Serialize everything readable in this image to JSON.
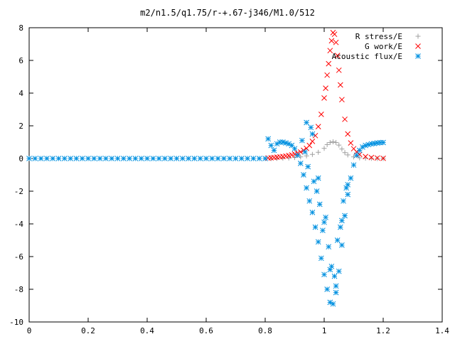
{
  "chart_data": {
    "type": "scatter",
    "title": "m2/n1.5/q1.75/r-+.67-j346/M1.0/512",
    "xlabel": "",
    "ylabel": "",
    "xlim": [
      0,
      1.4
    ],
    "ylim": [
      -10,
      8
    ],
    "x_ticks": [
      0,
      0.2,
      0.4,
      0.6,
      0.8,
      1.0,
      1.2,
      1.4
    ],
    "x_tick_labels": [
      "0",
      "0.2",
      "0.4",
      "0.6",
      "0.8",
      "1",
      "1.2",
      "1.4"
    ],
    "y_ticks": [
      -10,
      -8,
      -6,
      -4,
      -2,
      0,
      2,
      4,
      6,
      8
    ],
    "y_tick_labels": [
      "-10",
      "-8",
      "-6",
      "-4",
      "-2",
      "0",
      "2",
      "4",
      "6",
      "8"
    ],
    "grid": false,
    "legend_position": "top-right",
    "series": [
      {
        "name": "R stress/E",
        "marker": "plus",
        "color": "#a0a0a0",
        "points": [
          [
            0.82,
            0.0
          ],
          [
            0.84,
            0.01
          ],
          [
            0.86,
            0.02
          ],
          [
            0.88,
            0.03
          ],
          [
            0.9,
            0.06
          ],
          [
            0.92,
            0.1
          ],
          [
            0.94,
            0.16
          ],
          [
            0.96,
            0.25
          ],
          [
            0.98,
            0.38
          ],
          [
            1.0,
            0.62
          ],
          [
            1.01,
            0.85
          ],
          [
            1.02,
            0.98
          ],
          [
            1.03,
            1.02
          ],
          [
            1.04,
            0.98
          ],
          [
            1.05,
            0.82
          ],
          [
            1.06,
            0.58
          ],
          [
            1.07,
            0.36
          ],
          [
            1.08,
            0.22
          ],
          [
            1.1,
            0.1
          ],
          [
            1.12,
            0.04
          ],
          [
            1.14,
            0.02
          ],
          [
            1.16,
            0.01
          ],
          [
            1.18,
            0.0
          ],
          [
            1.2,
            0.0
          ]
        ]
      },
      {
        "name": "G work/E",
        "marker": "cross",
        "color": "#ff0000",
        "points": [
          [
            0.81,
            0.03
          ],
          [
            0.82,
            0.04
          ],
          [
            0.83,
            0.06
          ],
          [
            0.84,
            0.08
          ],
          [
            0.85,
            0.1
          ],
          [
            0.86,
            0.12
          ],
          [
            0.87,
            0.15
          ],
          [
            0.88,
            0.18
          ],
          [
            0.89,
            0.22
          ],
          [
            0.9,
            0.27
          ],
          [
            0.91,
            0.33
          ],
          [
            0.92,
            0.4
          ],
          [
            0.93,
            0.5
          ],
          [
            0.94,
            0.62
          ],
          [
            0.95,
            0.8
          ],
          [
            0.96,
            1.05
          ],
          [
            0.97,
            1.4
          ],
          [
            0.98,
            1.95
          ],
          [
            0.99,
            2.7
          ],
          [
            1.0,
            3.7
          ],
          [
            1.005,
            4.3
          ],
          [
            1.01,
            5.1
          ],
          [
            1.015,
            5.8
          ],
          [
            1.02,
            6.6
          ],
          [
            1.025,
            7.2
          ],
          [
            1.03,
            7.7
          ],
          [
            1.035,
            7.6
          ],
          [
            1.04,
            7.1
          ],
          [
            1.045,
            6.3
          ],
          [
            1.05,
            5.4
          ],
          [
            1.055,
            4.5
          ],
          [
            1.06,
            3.6
          ],
          [
            1.07,
            2.4
          ],
          [
            1.08,
            1.5
          ],
          [
            1.09,
            0.95
          ],
          [
            1.1,
            0.6
          ],
          [
            1.11,
            0.4
          ],
          [
            1.12,
            0.25
          ],
          [
            1.14,
            0.12
          ],
          [
            1.16,
            0.06
          ],
          [
            1.18,
            0.03
          ],
          [
            1.2,
            0.01
          ]
        ]
      },
      {
        "name": "Acoustic flux/E",
        "marker": "star",
        "color": "#0090e0",
        "points": [
          [
            0.0,
            0.0
          ],
          [
            0.02,
            0.0
          ],
          [
            0.04,
            0.0
          ],
          [
            0.06,
            0.0
          ],
          [
            0.08,
            0.0
          ],
          [
            0.1,
            0.0
          ],
          [
            0.12,
            0.0
          ],
          [
            0.14,
            0.0
          ],
          [
            0.16,
            0.0
          ],
          [
            0.18,
            0.0
          ],
          [
            0.2,
            0.0
          ],
          [
            0.22,
            0.0
          ],
          [
            0.24,
            0.0
          ],
          [
            0.26,
            0.0
          ],
          [
            0.28,
            0.0
          ],
          [
            0.3,
            0.0
          ],
          [
            0.32,
            0.0
          ],
          [
            0.34,
            0.0
          ],
          [
            0.36,
            0.0
          ],
          [
            0.38,
            0.0
          ],
          [
            0.4,
            0.0
          ],
          [
            0.42,
            0.0
          ],
          [
            0.44,
            0.0
          ],
          [
            0.46,
            0.0
          ],
          [
            0.48,
            0.0
          ],
          [
            0.5,
            0.0
          ],
          [
            0.52,
            0.0
          ],
          [
            0.54,
            0.0
          ],
          [
            0.56,
            0.0
          ],
          [
            0.58,
            0.0
          ],
          [
            0.6,
            0.0
          ],
          [
            0.62,
            0.0
          ],
          [
            0.64,
            0.0
          ],
          [
            0.66,
            0.0
          ],
          [
            0.68,
            0.0
          ],
          [
            0.7,
            0.0
          ],
          [
            0.72,
            0.0
          ],
          [
            0.74,
            0.0
          ],
          [
            0.76,
            0.0
          ],
          [
            0.78,
            0.0
          ],
          [
            0.8,
            0.0
          ],
          [
            0.81,
            1.2
          ],
          [
            0.82,
            0.8
          ],
          [
            0.83,
            0.5
          ],
          [
            0.84,
            0.9
          ],
          [
            0.85,
            1.0
          ],
          [
            0.86,
            1.0
          ],
          [
            0.87,
            0.95
          ],
          [
            0.88,
            0.9
          ],
          [
            0.89,
            0.8
          ],
          [
            0.9,
            0.6
          ],
          [
            0.91,
            0.2
          ],
          [
            0.92,
            -0.3
          ],
          [
            0.93,
            -1.0
          ],
          [
            0.94,
            -1.8
          ],
          [
            0.95,
            -2.6
          ],
          [
            0.96,
            -3.3
          ],
          [
            0.97,
            -4.2
          ],
          [
            0.98,
            -5.1
          ],
          [
            0.99,
            -6.1
          ],
          [
            1.0,
            -7.1
          ],
          [
            1.01,
            -8.0
          ],
          [
            1.02,
            -8.8
          ],
          [
            1.03,
            -8.9
          ],
          [
            1.04,
            -8.2
          ],
          [
            1.05,
            -6.9
          ],
          [
            1.06,
            -5.3
          ],
          [
            1.07,
            -3.5
          ],
          [
            1.08,
            -2.2
          ],
          [
            1.09,
            -1.2
          ],
          [
            1.1,
            -0.4
          ],
          [
            1.11,
            0.2
          ],
          [
            1.12,
            0.5
          ],
          [
            1.13,
            0.7
          ],
          [
            1.14,
            0.8
          ],
          [
            1.15,
            0.85
          ],
          [
            1.16,
            0.9
          ],
          [
            1.17,
            0.92
          ],
          [
            1.18,
            0.95
          ],
          [
            1.19,
            0.97
          ],
          [
            1.2,
            0.98
          ],
          [
            0.925,
            1.1
          ],
          [
            0.935,
            0.4
          ],
          [
            0.945,
            -0.5
          ],
          [
            0.955,
            1.9
          ],
          [
            0.965,
            -1.4
          ],
          [
            0.975,
            -2.0
          ],
          [
            0.985,
            -2.8
          ],
          [
            0.995,
            -4.4
          ],
          [
            1.005,
            -3.6
          ],
          [
            1.015,
            -5.4
          ],
          [
            1.025,
            -6.6
          ],
          [
            1.035,
            -7.2
          ],
          [
            1.045,
            -5.0
          ],
          [
            1.055,
            -4.2
          ],
          [
            1.065,
            -2.6
          ],
          [
            1.075,
            -1.8
          ],
          [
            0.94,
            2.2
          ],
          [
            0.96,
            1.5
          ],
          [
            0.98,
            -1.2
          ],
          [
            1.0,
            -3.9
          ],
          [
            1.02,
            -6.8
          ],
          [
            1.04,
            -7.8
          ],
          [
            1.06,
            -3.8
          ],
          [
            1.08,
            -1.6
          ]
        ]
      }
    ]
  }
}
